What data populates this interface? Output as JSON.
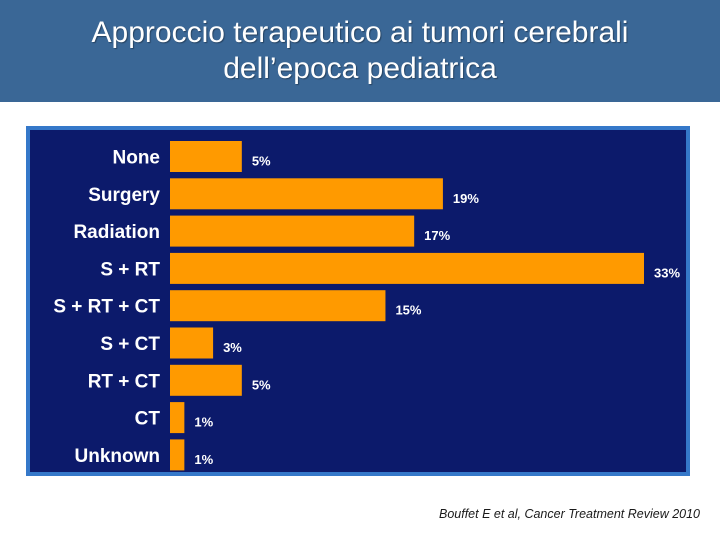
{
  "header": {
    "title_line1": "Approccio terapeutico ai tumori cerebrali",
    "title_line2": "dell’epoca pediatrica"
  },
  "chart_data": {
    "type": "bar",
    "orientation": "horizontal",
    "categories": [
      "None",
      "Surgery",
      "Radiation",
      "S + RT",
      "S + RT + CT",
      "S + CT",
      "RT + CT",
      "CT",
      "Unknown"
    ],
    "values": [
      5,
      19,
      17,
      33,
      15,
      3,
      5,
      1,
      1
    ],
    "value_labels": [
      "5%",
      "19%",
      "17%",
      "33%",
      "15%",
      "3%",
      "5%",
      "1%",
      "1%"
    ],
    "xlim": [
      0,
      33
    ],
    "colors": {
      "bar": "#ff9a00",
      "background": "#0c1a6b",
      "border": "#3578c9",
      "text": "#ffffff"
    }
  },
  "footer": {
    "citation": "Bouffet E et al, Cancer Treatment Review 2010"
  }
}
